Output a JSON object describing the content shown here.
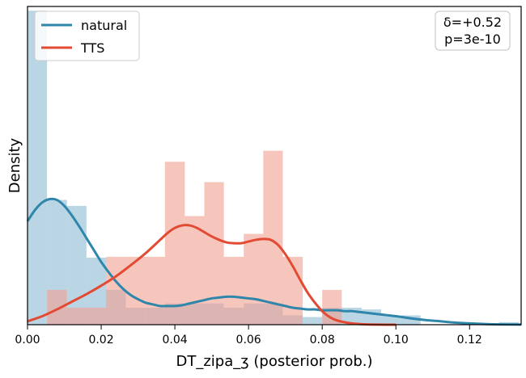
{
  "chart_data": {
    "type": "histogram",
    "xlabel": "DT_zipa_ʒ (posterior prob.)",
    "ylabel": "Density",
    "xlim": [
      0,
      0.134
    ],
    "x_ticks": [
      "0.00",
      "0.02",
      "0.04",
      "0.06",
      "0.08",
      "0.10",
      "0.12"
    ],
    "y_ticks": [],
    "legend_position": "upper-left",
    "annotation": {
      "line1": "δ=+0.52",
      "line2": "p=3e-10"
    },
    "series": [
      {
        "name": "natural",
        "color": "#2e86ab",
        "hist_color": "#8fbcd4",
        "hist_bins": [
          [
            0.0,
            0.0053,
            37.0
          ],
          [
            0.0053,
            0.0107,
            14.7
          ],
          [
            0.0107,
            0.016,
            14.0
          ],
          [
            0.016,
            0.0213,
            7.9
          ],
          [
            0.0213,
            0.0267,
            4.1
          ],
          [
            0.0267,
            0.032,
            2.0
          ],
          [
            0.032,
            0.0373,
            2.0
          ],
          [
            0.0373,
            0.0427,
            2.5
          ],
          [
            0.0427,
            0.048,
            2.5
          ],
          [
            0.048,
            0.0533,
            2.5
          ],
          [
            0.0533,
            0.0587,
            2.0
          ],
          [
            0.0587,
            0.064,
            2.5
          ],
          [
            0.064,
            0.0693,
            2.5
          ],
          [
            0.0693,
            0.0747,
            1.1
          ],
          [
            0.0747,
            0.08,
            0.9
          ],
          [
            0.08,
            0.0853,
            2.0
          ],
          [
            0.0853,
            0.0907,
            2.0
          ],
          [
            0.0907,
            0.096,
            1.8
          ],
          [
            0.096,
            0.1013,
            1.1
          ],
          [
            0.1013,
            0.1067,
            1.1
          ],
          [
            0.1067,
            0.112,
            0.0
          ],
          [
            0.112,
            0.1173,
            0.0
          ],
          [
            0.1173,
            0.1227,
            0.0
          ],
          [
            0.1227,
            0.128,
            0.0
          ],
          [
            0.128,
            0.1334,
            0.3
          ]
        ],
        "kde": [
          [
            0.0,
            12.2
          ],
          [
            0.002,
            13.5
          ],
          [
            0.004,
            14.4
          ],
          [
            0.006,
            14.8
          ],
          [
            0.008,
            14.7
          ],
          [
            0.01,
            14.0
          ],
          [
            0.012,
            12.9
          ],
          [
            0.014,
            11.6
          ],
          [
            0.016,
            10.2
          ],
          [
            0.018,
            8.8
          ],
          [
            0.02,
            7.4
          ],
          [
            0.022,
            6.2
          ],
          [
            0.024,
            5.1
          ],
          [
            0.026,
            4.2
          ],
          [
            0.028,
            3.5
          ],
          [
            0.03,
            3.0
          ],
          [
            0.032,
            2.6
          ],
          [
            0.034,
            2.4
          ],
          [
            0.036,
            2.2
          ],
          [
            0.038,
            2.2
          ],
          [
            0.04,
            2.2
          ],
          [
            0.042,
            2.3
          ],
          [
            0.044,
            2.5
          ],
          [
            0.046,
            2.7
          ],
          [
            0.048,
            2.9
          ],
          [
            0.05,
            3.1
          ],
          [
            0.052,
            3.2
          ],
          [
            0.054,
            3.3
          ],
          [
            0.056,
            3.3
          ],
          [
            0.058,
            3.2
          ],
          [
            0.06,
            3.1
          ],
          [
            0.062,
            3.0
          ],
          [
            0.064,
            2.8
          ],
          [
            0.066,
            2.6
          ],
          [
            0.068,
            2.4
          ],
          [
            0.07,
            2.2
          ],
          [
            0.072,
            2.0
          ],
          [
            0.074,
            1.9
          ],
          [
            0.076,
            1.8
          ],
          [
            0.078,
            1.8
          ],
          [
            0.08,
            1.7
          ],
          [
            0.082,
            1.7
          ],
          [
            0.084,
            1.7
          ],
          [
            0.086,
            1.6
          ],
          [
            0.088,
            1.6
          ],
          [
            0.09,
            1.5
          ],
          [
            0.092,
            1.4
          ],
          [
            0.094,
            1.3
          ],
          [
            0.096,
            1.2
          ],
          [
            0.098,
            1.1
          ],
          [
            0.1,
            1.0
          ],
          [
            0.104,
            0.75
          ],
          [
            0.108,
            0.55
          ],
          [
            0.112,
            0.4
          ],
          [
            0.116,
            0.25
          ],
          [
            0.12,
            0.15
          ],
          [
            0.124,
            0.08
          ],
          [
            0.128,
            0.04
          ],
          [
            0.134,
            0.01
          ]
        ]
      },
      {
        "name": "TTS",
        "color": "#e34a33",
        "hist_color": "#f0a193",
        "hist_bins": [
          [
            0.0053,
            0.0107,
            4.1
          ],
          [
            0.0107,
            0.016,
            2.0
          ],
          [
            0.016,
            0.0213,
            2.0
          ],
          [
            0.0213,
            0.0267,
            8.0
          ],
          [
            0.0267,
            0.032,
            8.0
          ],
          [
            0.032,
            0.0373,
            8.0
          ],
          [
            0.0373,
            0.0427,
            8.0
          ],
          [
            0.0427,
            0.048,
            10.0
          ],
          [
            0.048,
            0.0533,
            10.0
          ],
          [
            0.0533,
            0.0587,
            8.0
          ],
          [
            0.0587,
            0.064,
            10.0
          ],
          [
            0.064,
            0.0693,
            10.0
          ],
          [
            0.0693,
            0.0747,
            8.0
          ],
          [
            0.08,
            0.0853,
            4.1
          ]
        ],
        "hist_overrides": {
          "0.0373": 19.2,
          "0.0427": 12.8,
          "0.048": 16.8,
          "0.0533": 8.0,
          "0.0587": 10.7,
          "0.064": 20.5,
          "0.0693": 8.0,
          "0.0267": 8.0,
          "0.0213": 8.0
        },
        "kde": [
          [
            0.0,
            0.4
          ],
          [
            0.004,
            1.0
          ],
          [
            0.008,
            1.8
          ],
          [
            0.012,
            2.7
          ],
          [
            0.016,
            3.6
          ],
          [
            0.02,
            4.6
          ],
          [
            0.024,
            5.7
          ],
          [
            0.028,
            7.0
          ],
          [
            0.032,
            8.4
          ],
          [
            0.036,
            10.0
          ],
          [
            0.038,
            10.8
          ],
          [
            0.04,
            11.4
          ],
          [
            0.042,
            11.7
          ],
          [
            0.044,
            11.7
          ],
          [
            0.046,
            11.4
          ],
          [
            0.048,
            10.9
          ],
          [
            0.05,
            10.4
          ],
          [
            0.052,
            10.0
          ],
          [
            0.054,
            9.7
          ],
          [
            0.056,
            9.6
          ],
          [
            0.058,
            9.6
          ],
          [
            0.06,
            9.8
          ],
          [
            0.062,
            10.0
          ],
          [
            0.064,
            10.1
          ],
          [
            0.066,
            10.0
          ],
          [
            0.068,
            9.4
          ],
          [
            0.07,
            8.3
          ],
          [
            0.072,
            6.9
          ],
          [
            0.074,
            5.3
          ],
          [
            0.076,
            3.8
          ],
          [
            0.078,
            2.6
          ],
          [
            0.08,
            1.6
          ],
          [
            0.082,
            0.9
          ],
          [
            0.084,
            0.5
          ],
          [
            0.088,
            0.15
          ],
          [
            0.092,
            0.04
          ],
          [
            0.1,
            0.0
          ]
        ]
      }
    ],
    "ylim": [
      0,
      37.5
    ]
  }
}
